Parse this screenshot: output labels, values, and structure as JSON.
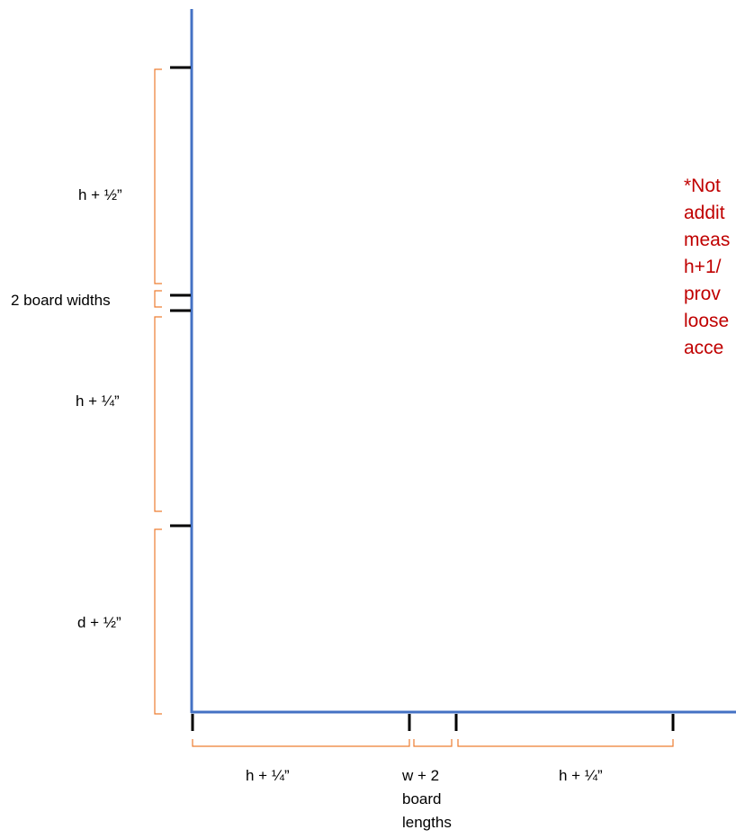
{
  "colors": {
    "axis": "#4472c4",
    "bracket": "#ed7d31",
    "tick": "#000000",
    "note": "#c00000"
  },
  "vertical_labels": {
    "top": "h + ½”",
    "gap": "2 board widths",
    "middle": "h + ¼”",
    "bottom": "d + ½”"
  },
  "horizontal_labels": {
    "left": "h + ¼”",
    "center_line1": "w + 2",
    "center_line2": "board",
    "center_line3": "lengths",
    "right": "h + ¼”"
  },
  "note_lines": [
    "*Not",
    "addit",
    "meas",
    "h+1/",
    "prov",
    "loose",
    "acce"
  ]
}
